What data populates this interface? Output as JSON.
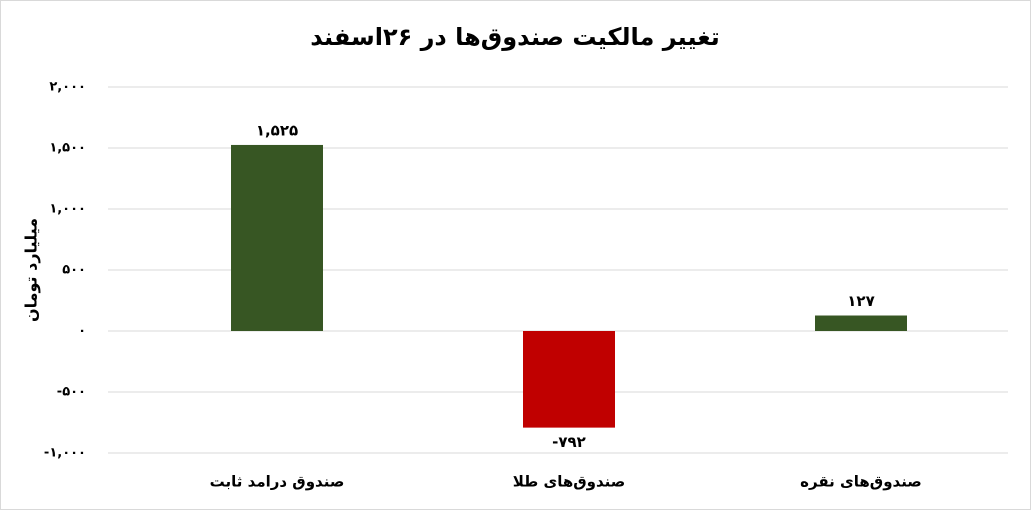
{
  "chart_data": {
    "type": "bar",
    "title": "تغییر مالکیت صندوق‌ها در ۲۶اسفند",
    "y_label": "میلیارد تومان",
    "categories": [
      "صندوق درامد ثابت",
      "صندوق‌های طلا",
      "صندوق‌های نقره"
    ],
    "values": [
      1525,
      -792,
      127
    ],
    "value_labels": [
      "۱,۵۲۵",
      "-۷۹۲",
      "۱۲۷"
    ],
    "colors": [
      "#375623",
      "#c00000",
      "#375623"
    ],
    "ylim": [
      -1000,
      2000
    ],
    "yticks": [
      {
        "value": -1000,
        "label": "-۱,۰۰۰"
      },
      {
        "value": -500,
        "label": "-۵۰۰"
      },
      {
        "value": 0,
        "label": "۰"
      },
      {
        "value": 500,
        "label": "۵۰۰"
      },
      {
        "value": 1000,
        "label": "۱,۰۰۰"
      },
      {
        "value": 1500,
        "label": "۱,۵۰۰"
      },
      {
        "value": 2000,
        "label": "۲,۰۰۰"
      }
    ],
    "grid": true
  }
}
